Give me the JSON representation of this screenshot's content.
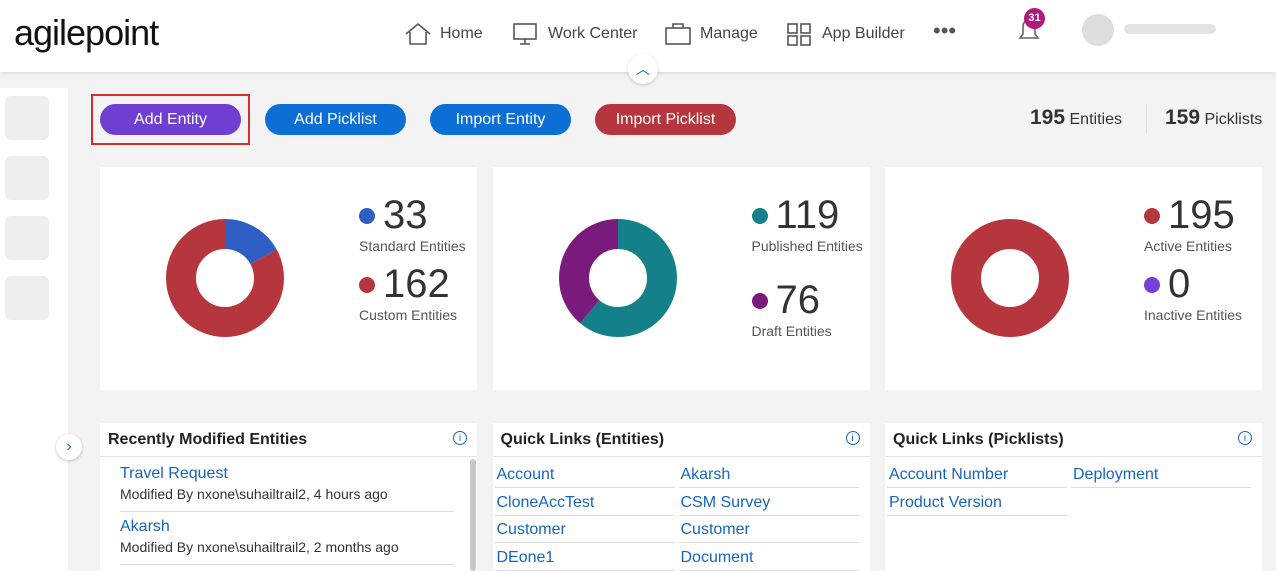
{
  "header": {
    "logo": "agilepoint",
    "nav": [
      "Home",
      "Work Center",
      "Manage",
      "App Builder"
    ],
    "notifications": "31"
  },
  "toolbar": {
    "buttons": [
      "Add Entity",
      "Add Picklist",
      "Import Entity",
      "Import Picklist"
    ],
    "counts": [
      {
        "value": "195",
        "label": "Entities"
      },
      {
        "value": "159",
        "label": "Picklists"
      }
    ]
  },
  "charts": [
    {
      "type": "pie",
      "series": [
        {
          "name": "Standard Entities",
          "value": 33,
          "color": "#2f5fc4"
        },
        {
          "name": "Custom Entities",
          "value": 162,
          "color": "#b5373d"
        }
      ]
    },
    {
      "type": "pie",
      "series": [
        {
          "name": "Published Entities",
          "value": 119,
          "color": "#14808a"
        },
        {
          "name": "Draft Entities",
          "value": 76,
          "color": "#7b1a7d"
        }
      ]
    },
    {
      "type": "pie",
      "series": [
        {
          "name": "Active Entities",
          "value": 195,
          "color": "#b5373d"
        },
        {
          "name": "Inactive Entities",
          "value": 0,
          "color": "#7a3fd6"
        }
      ]
    }
  ],
  "panels": [
    {
      "title": "Recently Modified Entities",
      "items": [
        {
          "name": "Travel Request",
          "detail": "Modified By nxone\\suhailtrail2, 4 hours ago"
        },
        {
          "name": "Akarsh",
          "detail": "Modified By nxone\\suhailtrail2, 2 months ago"
        }
      ]
    },
    {
      "title": "Quick Links (Entities)",
      "rows": [
        [
          "Account",
          "Akarsh"
        ],
        [
          "CloneAccTest",
          "CSM Survey"
        ],
        [
          "Customer",
          "Customer"
        ],
        [
          "DEone1",
          "Document"
        ]
      ]
    },
    {
      "title": "Quick Links (Picklists)",
      "rows": [
        [
          "Account Number",
          "Deployment"
        ],
        [
          "Product Version"
        ]
      ]
    }
  ]
}
